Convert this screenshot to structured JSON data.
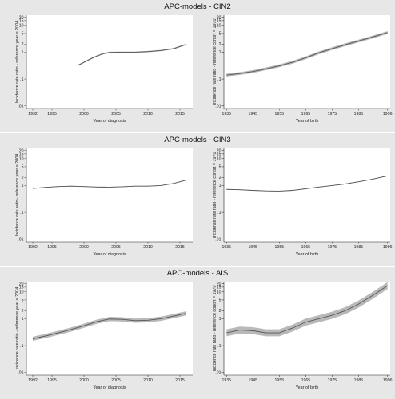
{
  "chart_data": [
    {
      "type": "line",
      "section_title": "APC-models - CIN2",
      "xlabel": "Year of diagnosis",
      "ylabel": "Incidence rate ratio - reference year = 2004",
      "yscale": "log",
      "xlim": [
        1991,
        2017
      ],
      "ylim": [
        0.008,
        24
      ],
      "x_ticks": [
        1992,
        1995,
        2000,
        2005,
        2010,
        2015
      ],
      "y_ticks": [
        0.01,
        0.1,
        1,
        2,
        5,
        10,
        15,
        20
      ],
      "y_tick_labels": [
        ".01",
        ".1",
        "1",
        "2",
        "5",
        "10",
        "15",
        "20"
      ],
      "series": [
        {
          "x": [
            1999,
            2000,
            2001,
            2002,
            2003,
            2004,
            2006,
            2008,
            2010,
            2012,
            2014,
            2016
          ],
          "y": [
            0.32,
            0.42,
            0.56,
            0.72,
            0.88,
            0.98,
            1.0,
            1.0,
            1.05,
            1.15,
            1.35,
            1.95
          ],
          "band": 0.06
        }
      ]
    },
    {
      "type": "line",
      "section_title": "",
      "xlabel": "Year of birth",
      "ylabel": "Incidence rate ratio - reference cohort = 1970",
      "yscale": "log",
      "xlim": [
        1934,
        1997
      ],
      "ylim": [
        0.008,
        24
      ],
      "x_ticks": [
        1935,
        1945,
        1955,
        1965,
        1975,
        1985,
        1996
      ],
      "y_ticks": [
        0.01,
        0.1,
        1,
        2,
        5,
        10,
        15,
        20
      ],
      "y_tick_labels": [
        ".01",
        ".1",
        "1",
        "2",
        "5",
        "10",
        "15",
        "20"
      ],
      "series": [
        {
          "x": [
            1935,
            1940,
            1945,
            1950,
            1955,
            1960,
            1965,
            1970,
            1975,
            1980,
            1985,
            1990,
            1996
          ],
          "y": [
            0.14,
            0.16,
            0.19,
            0.24,
            0.31,
            0.42,
            0.62,
            0.95,
            1.35,
            1.9,
            2.6,
            3.6,
            5.4
          ],
          "band": 0.12
        }
      ]
    },
    {
      "type": "line",
      "section_title": "APC-models - CIN3",
      "xlabel": "Year of diagnosis",
      "ylabel": "Incidence rate ratio - reference year = 2004",
      "yscale": "log",
      "xlim": [
        1991,
        2017
      ],
      "ylim": [
        0.008,
        24
      ],
      "x_ticks": [
        1992,
        1995,
        2000,
        2005,
        2010,
        2015
      ],
      "y_ticks": [
        0.01,
        0.1,
        1,
        2,
        5,
        10,
        15,
        20
      ],
      "y_tick_labels": [
        ".01",
        ".1",
        "1",
        "2",
        "5",
        "10",
        "15",
        "20"
      ],
      "series": [
        {
          "x": [
            1992,
            1994,
            1996,
            1998,
            2000,
            2002,
            2004,
            2006,
            2008,
            2010,
            2012,
            2014,
            2016
          ],
          "y": [
            0.78,
            0.86,
            0.92,
            0.95,
            0.92,
            0.88,
            0.87,
            0.9,
            0.95,
            0.95,
            1.0,
            1.2,
            1.6
          ],
          "band": 0.03
        }
      ]
    },
    {
      "type": "line",
      "section_title": "",
      "xlabel": "Year of birth",
      "ylabel": "Incidence rate ratio - reference cohort = 1970",
      "yscale": "log",
      "xlim": [
        1934,
        1997
      ],
      "ylim": [
        0.008,
        24
      ],
      "x_ticks": [
        1935,
        1945,
        1955,
        1965,
        1975,
        1985,
        1996
      ],
      "y_ticks": [
        0.01,
        0.1,
        1,
        2,
        5,
        10,
        15,
        20
      ],
      "y_tick_labels": [
        ".01",
        ".1",
        "1",
        "2",
        "5",
        "10",
        "15",
        "20"
      ],
      "series": [
        {
          "x": [
            1935,
            1940,
            1945,
            1950,
            1955,
            1960,
            1965,
            1970,
            1975,
            1980,
            1985,
            1990,
            1996
          ],
          "y": [
            0.72,
            0.7,
            0.66,
            0.63,
            0.62,
            0.66,
            0.76,
            0.88,
            1.0,
            1.15,
            1.38,
            1.7,
            2.3
          ],
          "band": 0.03
        }
      ]
    },
    {
      "type": "line",
      "section_title": "APC-models - AIS",
      "xlabel": "Year of diagnosis",
      "ylabel": "Incidence rate ratio - reference year = 2004",
      "yscale": "log",
      "xlim": [
        1991,
        2017
      ],
      "ylim": [
        0.008,
        24
      ],
      "x_ticks": [
        1992,
        1995,
        2000,
        2005,
        2010,
        2015
      ],
      "y_ticks": [
        0.01,
        0.1,
        1,
        2,
        5,
        10,
        15,
        20
      ],
      "y_tick_labels": [
        ".01",
        ".1",
        "1",
        "2",
        "5",
        "10",
        "15",
        "20"
      ],
      "series": [
        {
          "x": [
            1992,
            1994,
            1996,
            1998,
            2000,
            2002,
            2004,
            2006,
            2008,
            2010,
            2012,
            2014,
            2016
          ],
          "y": [
            0.18,
            0.23,
            0.3,
            0.4,
            0.55,
            0.78,
            0.98,
            0.95,
            0.85,
            0.88,
            1.0,
            1.25,
            1.6
          ],
          "band": 0.18
        }
      ]
    },
    {
      "type": "line",
      "section_title": "",
      "xlabel": "Year of birth",
      "ylabel": "Incidence rate ratio - reference cohort = 1970",
      "yscale": "log",
      "xlim": [
        1934,
        1997
      ],
      "ylim": [
        0.008,
        24
      ],
      "x_ticks": [
        1935,
        1945,
        1955,
        1965,
        1975,
        1985,
        1996
      ],
      "y_ticks": [
        0.01,
        0.1,
        1,
        2,
        5,
        10,
        15,
        20
      ],
      "y_tick_labels": [
        ".01",
        ".1",
        "1",
        "2",
        "5",
        "10",
        "15",
        "20"
      ],
      "series": [
        {
          "x": [
            1935,
            1940,
            1945,
            1950,
            1955,
            1960,
            1965,
            1970,
            1975,
            1980,
            1985,
            1990,
            1996
          ],
          "y": [
            0.3,
            0.38,
            0.36,
            0.3,
            0.3,
            0.45,
            0.75,
            1.0,
            1.35,
            2.0,
            3.5,
            7.0,
            17.0
          ],
          "band": 0.3
        }
      ]
    }
  ]
}
